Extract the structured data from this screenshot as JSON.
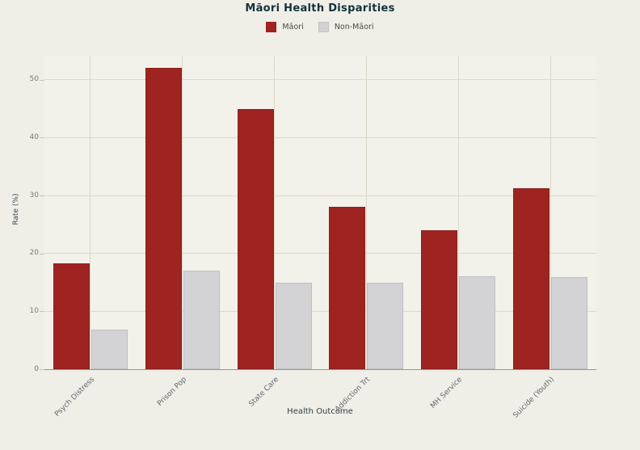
{
  "title": "Māori Health Disparities",
  "chart_data": {
    "type": "bar",
    "title": "Māori Health Disparities",
    "categories": [
      "Psych Distress",
      "Prison Pop",
      "State Care",
      "Addiction Trt",
      "MH Service",
      "Suicide (Youth)"
    ],
    "series": [
      {
        "name": "Māori",
        "color": "#9e2321",
        "values": [
          18.3,
          52,
          45,
          28,
          24,
          31.2
        ]
      },
      {
        "name": "Non-Māori",
        "color": "#d3d3d6",
        "values": [
          6.8,
          17,
          15,
          15,
          16.1,
          15.9
        ]
      }
    ],
    "xlabel": "Health Outcome",
    "ylabel": "Rate (%)",
    "ylim": [
      0,
      54
    ],
    "yticks": [
      0,
      10,
      20,
      30,
      40,
      50
    ],
    "grid": true,
    "legend_position": "top"
  },
  "colors": {
    "maori_bar": "#9e2321",
    "non_maori_bar": "#d3d3d6",
    "background": "#efeee7",
    "gridline": "#dcd9cb",
    "title_text": "#13323c",
    "tick_text": "#7b7b76"
  }
}
